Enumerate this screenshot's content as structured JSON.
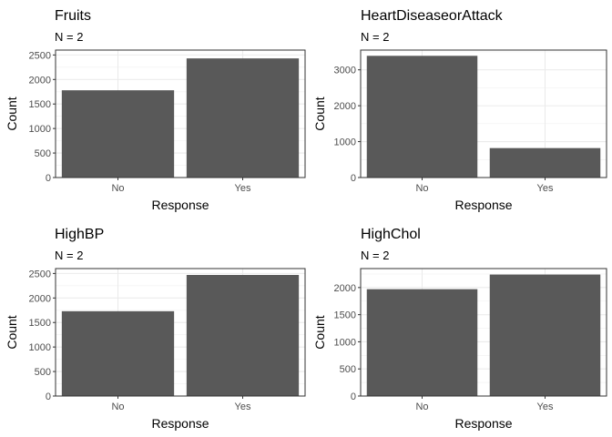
{
  "chart_data": [
    {
      "type": "bar",
      "title": "Fruits",
      "subtitle": "N = 2",
      "xlabel": "Response",
      "ylabel": "Count",
      "categories": [
        "No",
        "Yes"
      ],
      "values": [
        1780,
        2430
      ],
      "ylim": [
        0,
        2600
      ],
      "yticks": [
        0,
        500,
        1000,
        1500,
        2000,
        2500
      ],
      "grid": true,
      "bar_color": "#595959"
    },
    {
      "type": "bar",
      "title": "HeartDiseaseorAttack",
      "subtitle": "N = 2",
      "xlabel": "Response",
      "ylabel": "Count",
      "categories": [
        "No",
        "Yes"
      ],
      "values": [
        3390,
        820
      ],
      "ylim": [
        0,
        3550
      ],
      "yticks": [
        0,
        1000,
        2000,
        3000
      ],
      "grid": true,
      "bar_color": "#595959"
    },
    {
      "type": "bar",
      "title": "HighBP",
      "subtitle": "N = 2",
      "xlabel": "Response",
      "ylabel": "Count",
      "categories": [
        "No",
        "Yes"
      ],
      "values": [
        1730,
        2470
      ],
      "ylim": [
        0,
        2600
      ],
      "yticks": [
        0,
        500,
        1000,
        1500,
        2000,
        2500
      ],
      "grid": true,
      "bar_color": "#595959"
    },
    {
      "type": "bar",
      "title": "HighChol",
      "subtitle": "N = 2",
      "xlabel": "Response",
      "ylabel": "Count",
      "categories": [
        "No",
        "Yes"
      ],
      "values": [
        1970,
        2240
      ],
      "ylim": [
        0,
        2350
      ],
      "yticks": [
        0,
        500,
        1000,
        1500,
        2000
      ],
      "grid": true,
      "bar_color": "#595959"
    }
  ]
}
